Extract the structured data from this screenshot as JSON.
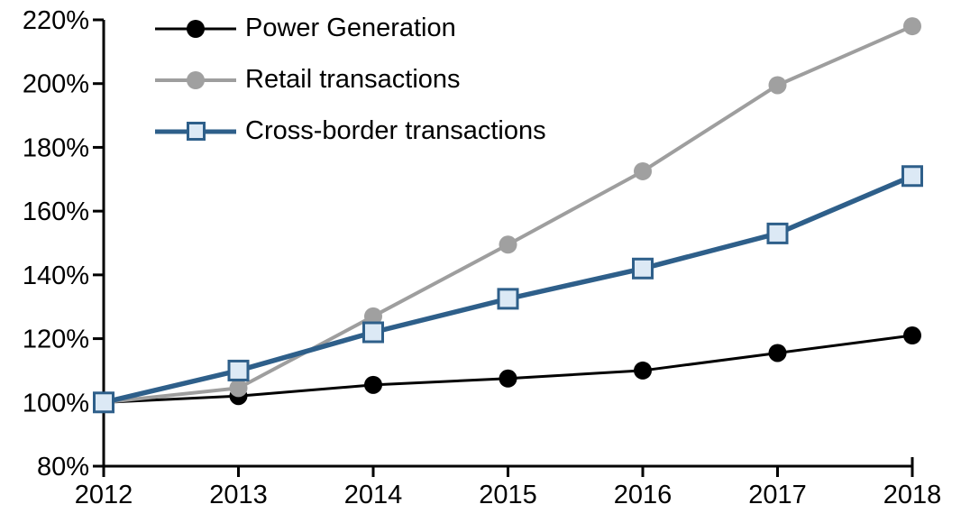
{
  "chart_data": {
    "type": "line",
    "title": "",
    "x": [
      2012,
      2013,
      2014,
      2015,
      2016,
      2017,
      2018
    ],
    "x_tick_labels": [
      "2012",
      "2013",
      "2014",
      "2015",
      "2016",
      "2017",
      "2018"
    ],
    "y_axis": {
      "min": 80,
      "max": 220,
      "step": 20,
      "unit": "%",
      "tick_labels": [
        "80%",
        "100%",
        "120%",
        "140%",
        "160%",
        "180%",
        "200%",
        "220%"
      ]
    },
    "grid": false,
    "legend_position": "top-left",
    "series": [
      {
        "name": "Power Generation",
        "marker": "circle",
        "line_color": "#000000",
        "marker_color": "#000000",
        "marker_border": "#000000",
        "line_width": 3,
        "values": [
          100,
          102,
          105.5,
          107.5,
          110,
          115.5,
          121
        ]
      },
      {
        "name": "Retail transactions",
        "marker": "circle",
        "line_color": "#9E9E9E",
        "marker_color": "#A0A0A0",
        "marker_border": "#A0A0A0",
        "line_width": 4,
        "values": [
          100,
          104.5,
          127,
          149.5,
          172.5,
          199.5,
          218
        ]
      },
      {
        "name": "Cross-border transactions",
        "marker": "square",
        "line_color": "#2E5F8A",
        "marker_color": "#DCE9F5",
        "marker_border": "#2E5F8A",
        "line_width": 5.5,
        "values": [
          100,
          110,
          122,
          132.5,
          142,
          153,
          171
        ]
      }
    ]
  }
}
